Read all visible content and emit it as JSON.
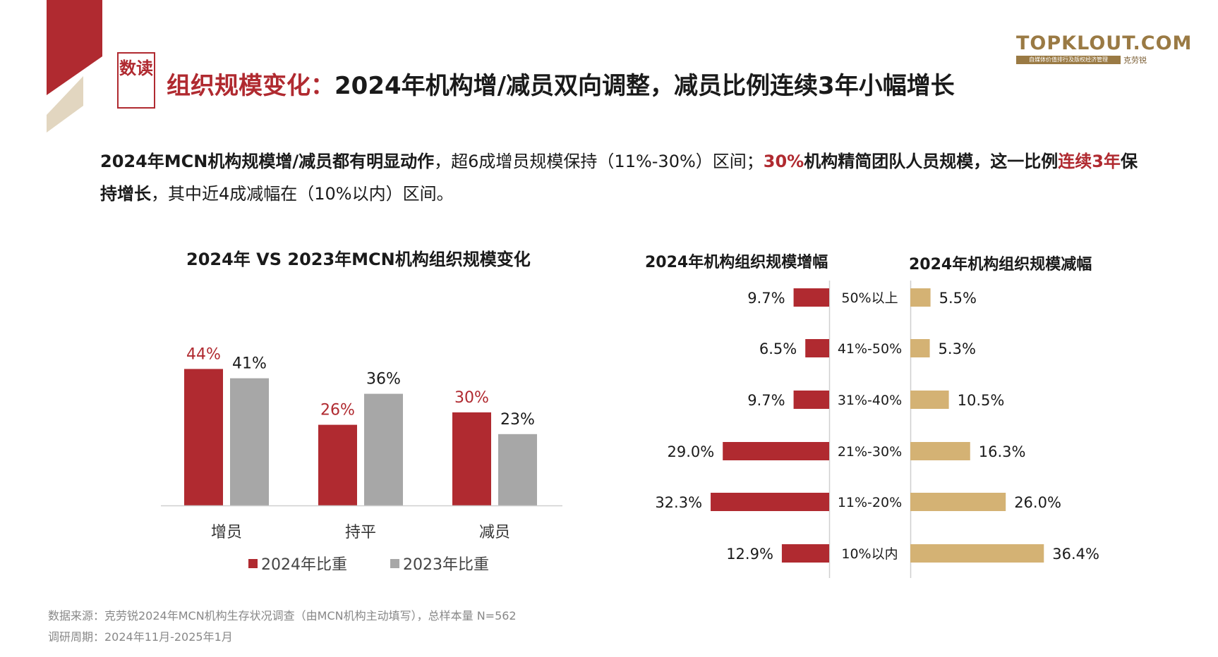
{
  "section_badge": "数读",
  "title": {
    "prefix": "组织规模变化：",
    "main": "2024年机构增/减员双向调整，减员比例连续3年小幅增长"
  },
  "logo": {
    "name": "TOPKLOUT.COM",
    "cn": "克劳锐",
    "tagline": "自媒体价值排行及版权经济管理"
  },
  "paragraph": {
    "p1_bold": "2024年MCN机构规模增/减员都有明显动作",
    "p2": "，超6成增员规模保持（11%-30%）区间；",
    "p3_red": "30%",
    "p4_bold": "机构精简团队人员规模，这一比例",
    "p5_red": "连续3年",
    "p6_bold": "保持增长",
    "p7": "，其中近4成减幅在（10%以内）区间。"
  },
  "colors": {
    "red": "#b02a30",
    "gray": "#a7a7a7",
    "gold": "#d4b274",
    "text": "#1a1a1a"
  },
  "chart_data": [
    {
      "type": "bar",
      "title": "2024年 VS 2023年MCN机构组织规模变化",
      "categories": [
        "增员",
        "持平",
        "减员"
      ],
      "series": [
        {
          "name": "2024年比重",
          "values": [
            44,
            26,
            30
          ],
          "labels": [
            "44%",
            "26%",
            "30%"
          ]
        },
        {
          "name": "2023年比重",
          "values": [
            41,
            36,
            23
          ],
          "labels": [
            "41%",
            "36%",
            "23%"
          ]
        }
      ],
      "ylim": [
        0,
        50
      ],
      "legend": "bottom"
    },
    {
      "type": "bar",
      "orientation": "horizontal",
      "title": "2024年机构组织规模增幅",
      "categories": [
        "50%以上",
        "41%-50%",
        "31%-40%",
        "21%-30%",
        "11%-20%",
        "10%以内"
      ],
      "values": [
        9.7,
        6.5,
        9.7,
        29.0,
        32.3,
        12.9
      ],
      "labels": [
        "9.7%",
        "6.5%",
        "9.7%",
        "29.0%",
        "32.3%",
        "12.9%"
      ]
    },
    {
      "type": "bar",
      "orientation": "horizontal",
      "title": "2024年机构组织规模减幅",
      "categories": [
        "50%以上",
        "41%-50%",
        "31%-40%",
        "21%-30%",
        "11%-20%",
        "10%以内"
      ],
      "values": [
        5.5,
        5.3,
        10.5,
        16.3,
        26.0,
        36.4
      ],
      "labels": [
        "5.5%",
        "5.3%",
        "10.5%",
        "16.3%",
        "26.0%",
        "36.4%"
      ]
    }
  ],
  "source": {
    "line1": "数据来源：克劳锐2024年MCN机构生存状况调查（由MCN机构主动填写），总样本量 N=562",
    "line2": "调研周期：2024年11月-2025年1月"
  }
}
